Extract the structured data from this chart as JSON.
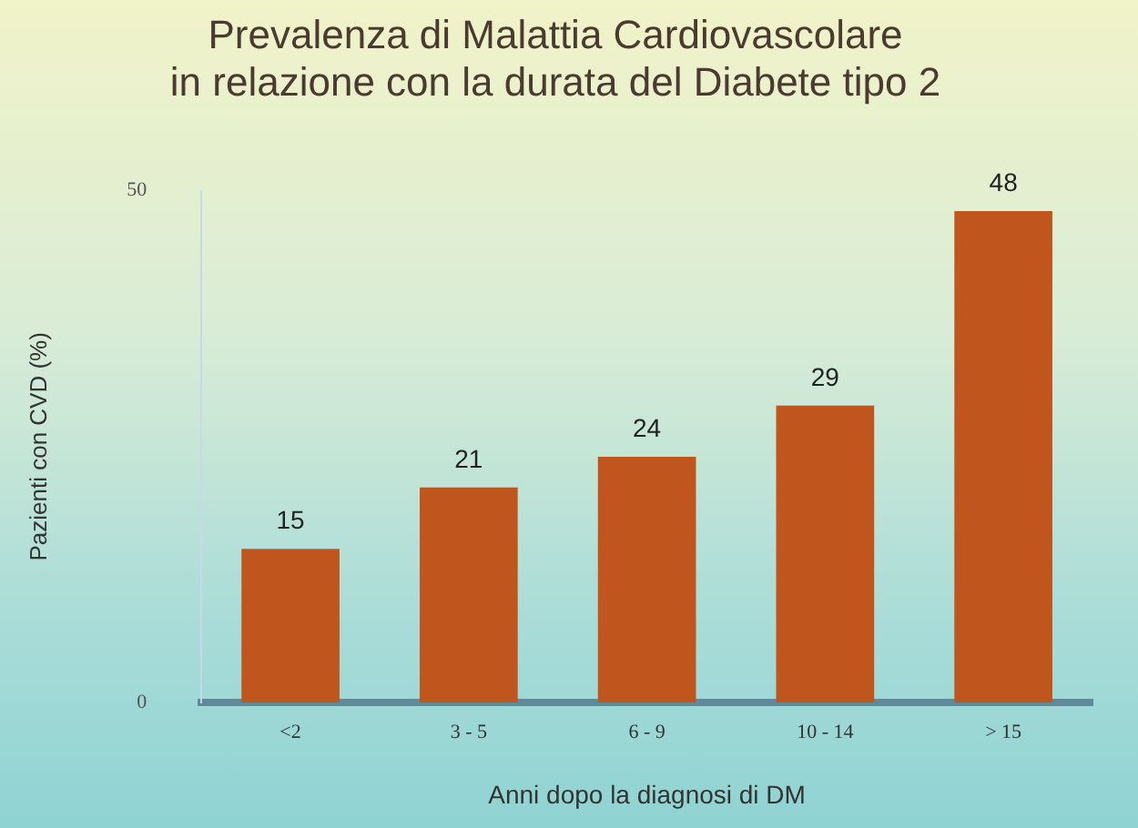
{
  "chart_data": {
    "type": "bar",
    "title": "Prevalenza di Malattia Cardiovascolare\nin relazione con la durata del Diabete tipo 2",
    "xlabel": "Anni dopo la diagnosi di DM",
    "ylabel": "Pazienti con CVD (%)",
    "categories": [
      "<2",
      "3 - 5",
      "6 - 9",
      "10 - 14",
      "> 15"
    ],
    "values": [
      15,
      21,
      24,
      29,
      48
    ],
    "color": "#c0561e",
    "ylim": [
      0,
      50
    ],
    "yticks": [
      0,
      50
    ],
    "grid": false,
    "legend": false,
    "data_labels": true
  }
}
